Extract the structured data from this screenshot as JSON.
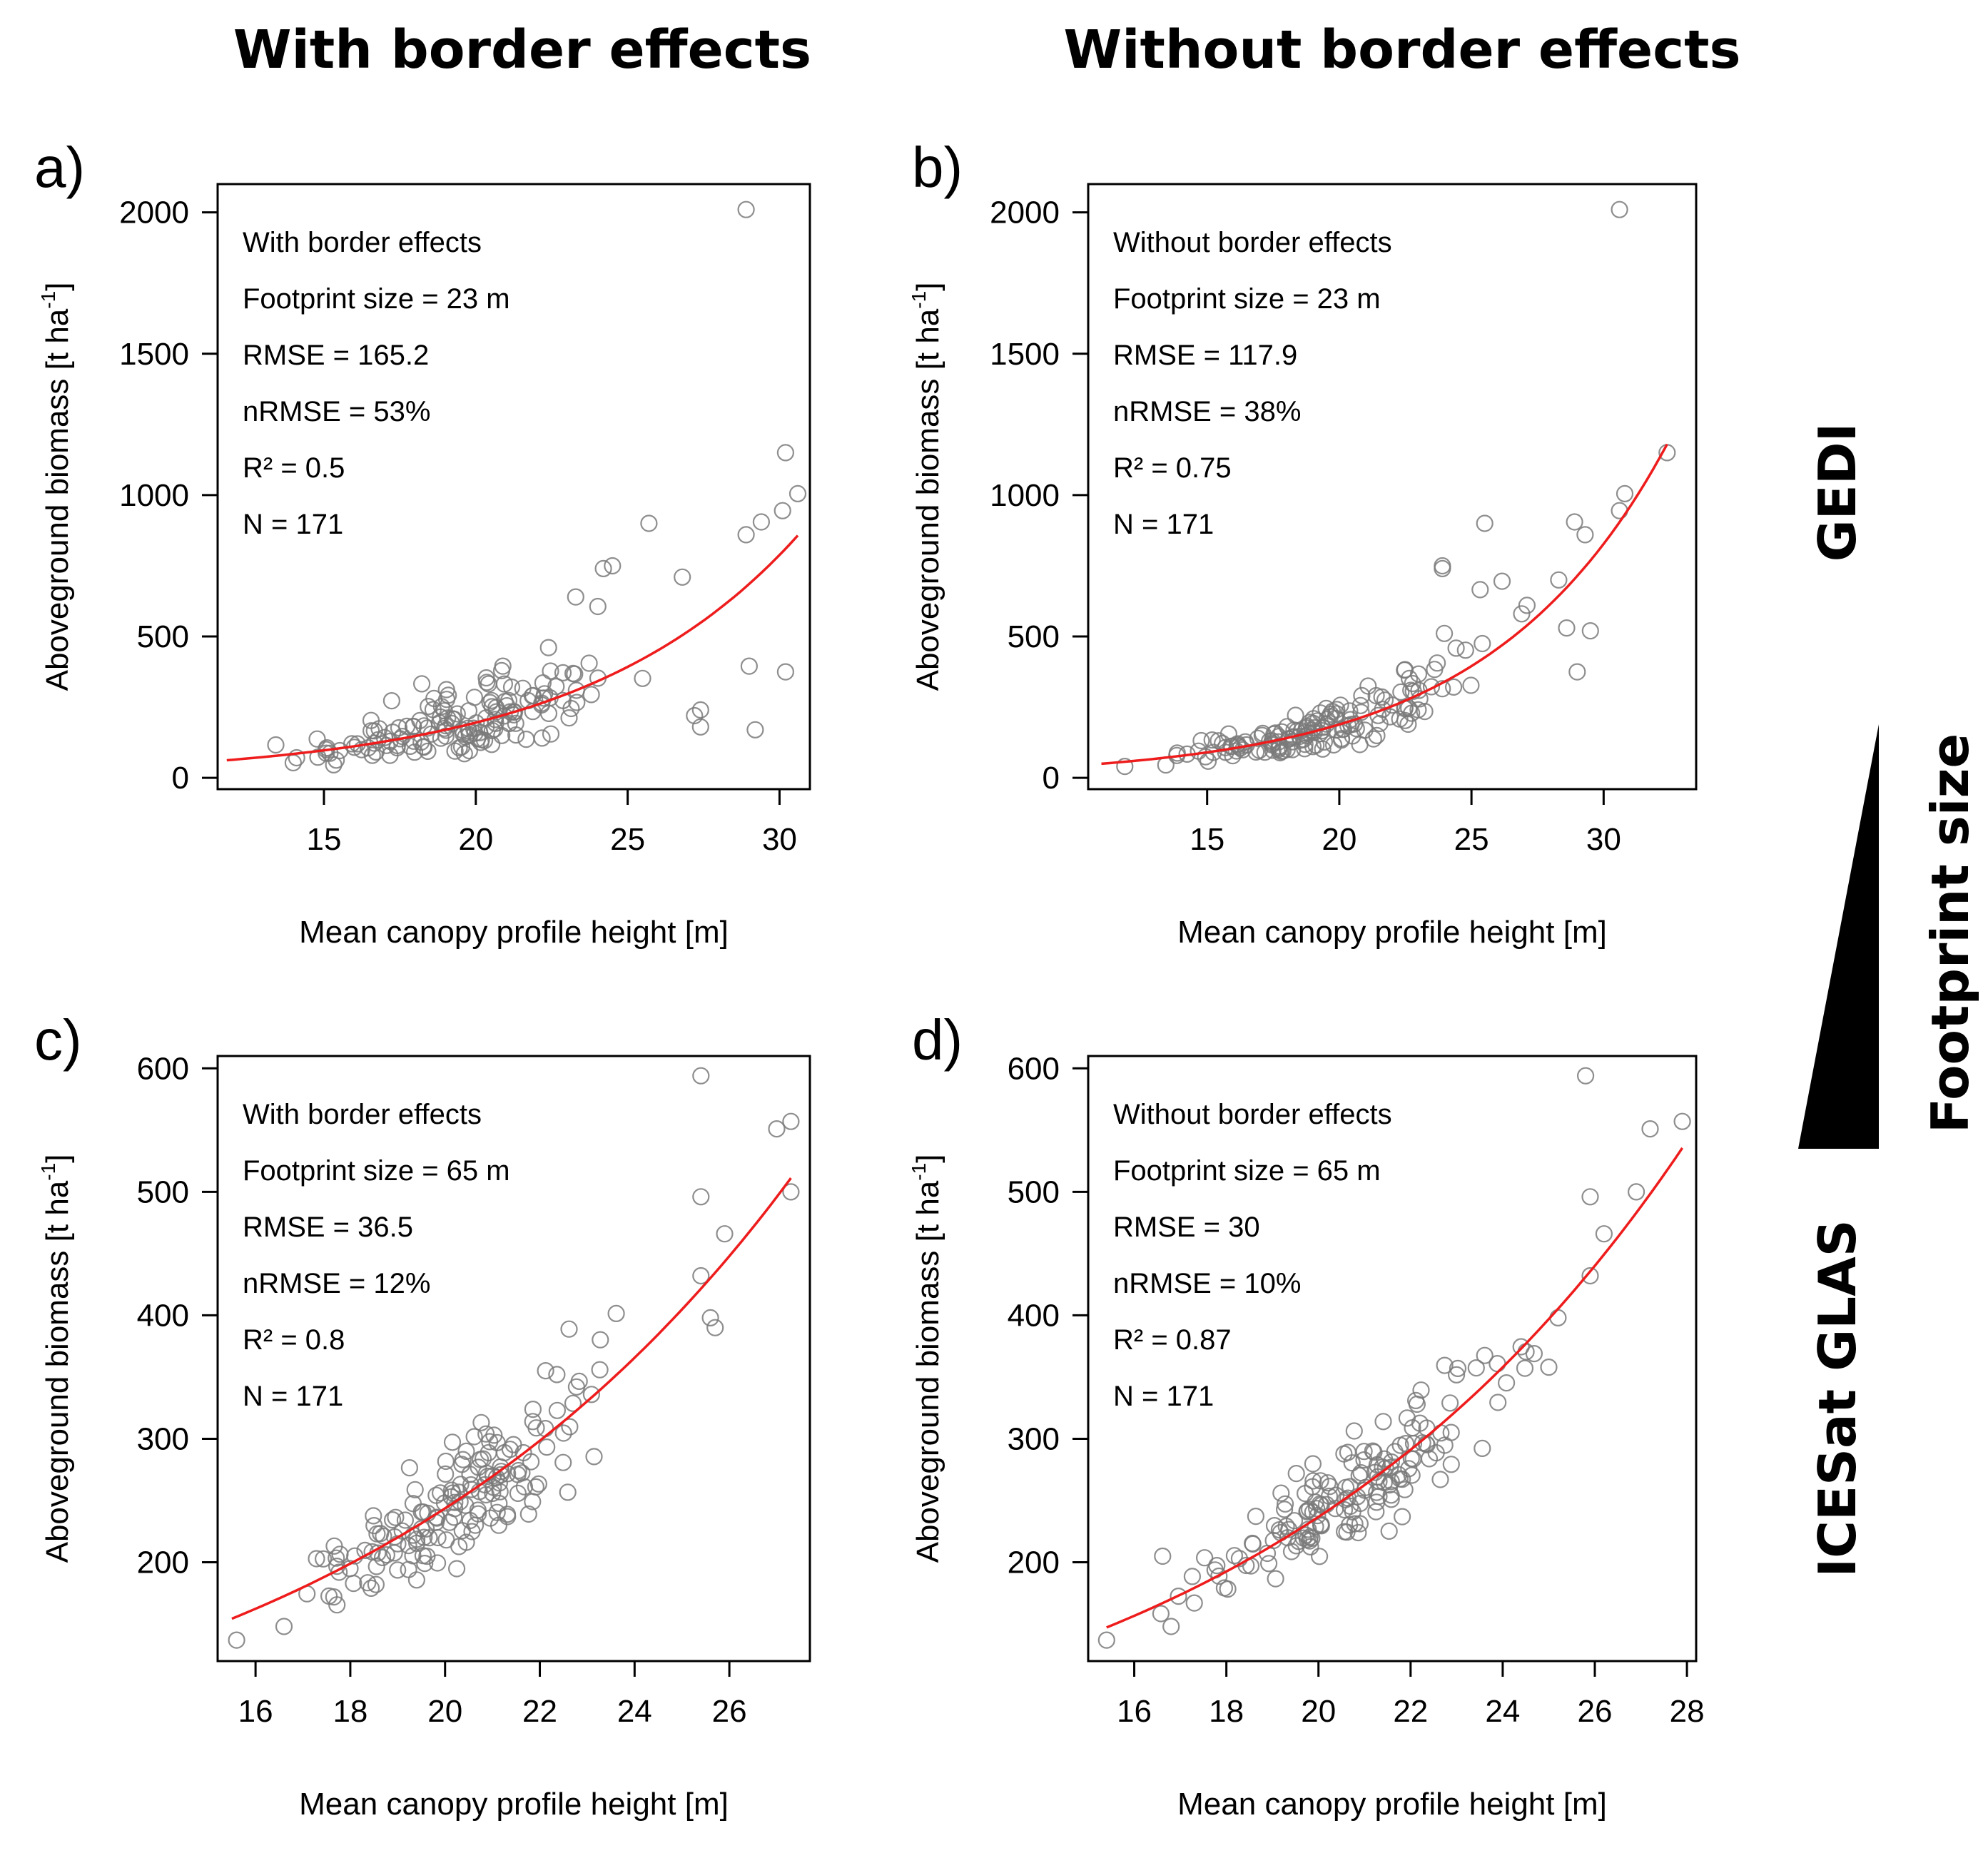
{
  "figure": {
    "col_titles": [
      "With border effects",
      "Without border effects"
    ],
    "row_labels": [
      "GEDI",
      "ICESat GLAS"
    ],
    "gradient_label": "Footprint size",
    "colors": {
      "points": "#7a7a7a",
      "fit": "#ee1c1c",
      "frame": "#000000"
    }
  },
  "chart_data": [
    {
      "type": "scatter",
      "id": "a",
      "letter": "a)",
      "xlabel": "Mean canopy profile height [m]",
      "ylabel_main": "Aboveground biomass [t ha",
      "ylabel_sup": "-1",
      "ylabel_end": "]",
      "xlim": [
        11.5,
        31
      ],
      "ylim": [
        -40,
        2100
      ],
      "xticks": [
        15,
        20,
        25,
        30
      ],
      "xtick_labels": [
        "15",
        "20",
        "25",
        "30"
      ],
      "yticks": [
        0,
        500,
        1000,
        1500,
        2000
      ],
      "ytick_labels": [
        "0",
        "500",
        "1000",
        "1500",
        "2000"
      ],
      "stats": [
        "With border effects",
        "Footprint size = 23 m",
        "RMSE = 165.2",
        "nRMSE = 53%",
        "R² = 0.5",
        "N = 171"
      ],
      "seed": 11,
      "n": 171,
      "fit": {
        "a": 12.0,
        "b": 0.1395
      },
      "noise": 0.32,
      "extra_points": [
        [
          28.9,
          2010
        ],
        [
          30.2,
          1150
        ],
        [
          30.6,
          1005
        ],
        [
          30.1,
          945
        ],
        [
          29.4,
          905
        ],
        [
          28.9,
          860
        ],
        [
          25.7,
          900
        ],
        [
          24.5,
          750
        ],
        [
          24.2,
          740
        ],
        [
          26.8,
          710
        ],
        [
          29.2,
          170
        ],
        [
          30.2,
          375
        ],
        [
          29.0,
          395
        ],
        [
          27.4,
          240
        ],
        [
          27.2,
          220
        ],
        [
          27.4,
          180
        ]
      ],
      "fit_range": [
        11.8,
        30.6
      ]
    },
    {
      "type": "scatter",
      "id": "b",
      "letter": "b)",
      "xlabel": "Mean canopy profile height [m]",
      "ylabel_main": "Aboveground biomass [t ha",
      "ylabel_sup": "-1",
      "ylabel_end": "]",
      "xlim": [
        10.5,
        33.5
      ],
      "ylim": [
        -40,
        2100
      ],
      "xticks": [
        15,
        20,
        25,
        30
      ],
      "xtick_labels": [
        "15",
        "20",
        "25",
        "30"
      ],
      "yticks": [
        0,
        500,
        1000,
        1500,
        2000
      ],
      "ytick_labels": [
        "0",
        "500",
        "1000",
        "1500",
        "2000"
      ],
      "stats": [
        "Without border effects",
        "Footprint size = 23 m",
        "RMSE = 117.9",
        "nRMSE = 38%",
        "R² = 0.75",
        "N = 171"
      ],
      "seed": 29,
      "n": 171,
      "fit": {
        "a": 9.82,
        "b": 0.1478
      },
      "noise": 0.22,
      "extra_points": [
        [
          30.6,
          2010
        ],
        [
          32.4,
          1150
        ],
        [
          30.8,
          1005
        ],
        [
          30.6,
          945
        ],
        [
          28.9,
          905
        ],
        [
          29.3,
          860
        ],
        [
          25.5,
          900
        ],
        [
          23.9,
          750
        ],
        [
          23.9,
          740
        ],
        [
          28.3,
          700
        ],
        [
          29.0,
          375
        ],
        [
          29.5,
          520
        ],
        [
          28.6,
          530
        ],
        [
          26.9,
          580
        ],
        [
          27.1,
          610
        ]
      ],
      "fit_range": [
        11.0,
        32.4
      ]
    },
    {
      "type": "scatter",
      "id": "c",
      "letter": "c)",
      "xlabel": "Mean canopy profile height [m]",
      "ylabel_main": "Aboveground biomass [t ha",
      "ylabel_sup": "-1",
      "ylabel_end": "]",
      "xlim": [
        15.2,
        27.7
      ],
      "ylim": [
        120,
        610
      ],
      "xticks": [
        16,
        18,
        20,
        22,
        24,
        26
      ],
      "xtick_labels": [
        "16",
        "18",
        "20",
        "22",
        "24",
        "26"
      ],
      "yticks": [
        200,
        300,
        400,
        500,
        600
      ],
      "ytick_labels": [
        "200",
        "300",
        "400",
        "500",
        "600"
      ],
      "stats": [
        "With border effects",
        "Footprint size = 65 m",
        "RMSE = 36.5",
        "nRMSE = 12%",
        "R² = 0.8",
        "N = 171"
      ],
      "seed": 53,
      "n": 171,
      "fit": {
        "a": 32.0,
        "b": 0.1015
      },
      "noise": 0.1,
      "extra_points": [
        [
          15.6,
          137
        ],
        [
          16.6,
          148
        ],
        [
          25.4,
          594
        ],
        [
          27.3,
          557
        ],
        [
          27.0,
          551
        ],
        [
          27.3,
          500
        ],
        [
          25.4,
          496
        ],
        [
          25.9,
          466
        ],
        [
          25.4,
          432
        ],
        [
          25.6,
          398
        ],
        [
          25.7,
          390
        ]
      ],
      "fit_range": [
        15.5,
        27.3
      ]
    },
    {
      "type": "scatter",
      "id": "d",
      "letter": "d)",
      "xlabel": "Mean canopy profile height [m]",
      "ylabel_main": "Aboveground biomass [t ha",
      "ylabel_sup": "-1",
      "ylabel_end": "]",
      "xlim": [
        15.0,
        28.2
      ],
      "ylim": [
        120,
        610
      ],
      "xticks": [
        16,
        18,
        20,
        22,
        24,
        26,
        28
      ],
      "xtick_labels": [
        "16",
        "18",
        "20",
        "22",
        "24",
        "26",
        "28"
      ],
      "yticks": [
        200,
        300,
        400,
        500,
        600
      ],
      "ytick_labels": [
        "200",
        "300",
        "400",
        "500",
        "600"
      ],
      "stats": [
        "Without border effects",
        "Footprint size = 65 m",
        "RMSE = 30",
        "nRMSE = 10%",
        "R² = 0.87",
        "N = 171"
      ],
      "seed": 71,
      "n": 171,
      "fit": {
        "a": 30.0,
        "b": 0.1033
      },
      "noise": 0.08,
      "extra_points": [
        [
          15.4,
          137
        ],
        [
          16.8,
          148
        ],
        [
          25.8,
          594
        ],
        [
          27.9,
          557
        ],
        [
          27.2,
          551
        ],
        [
          26.9,
          500
        ],
        [
          25.9,
          496
        ],
        [
          26.2,
          466
        ],
        [
          25.9,
          432
        ],
        [
          25.2,
          398
        ],
        [
          25.0,
          358
        ]
      ],
      "fit_range": [
        15.4,
        27.9
      ]
    }
  ]
}
